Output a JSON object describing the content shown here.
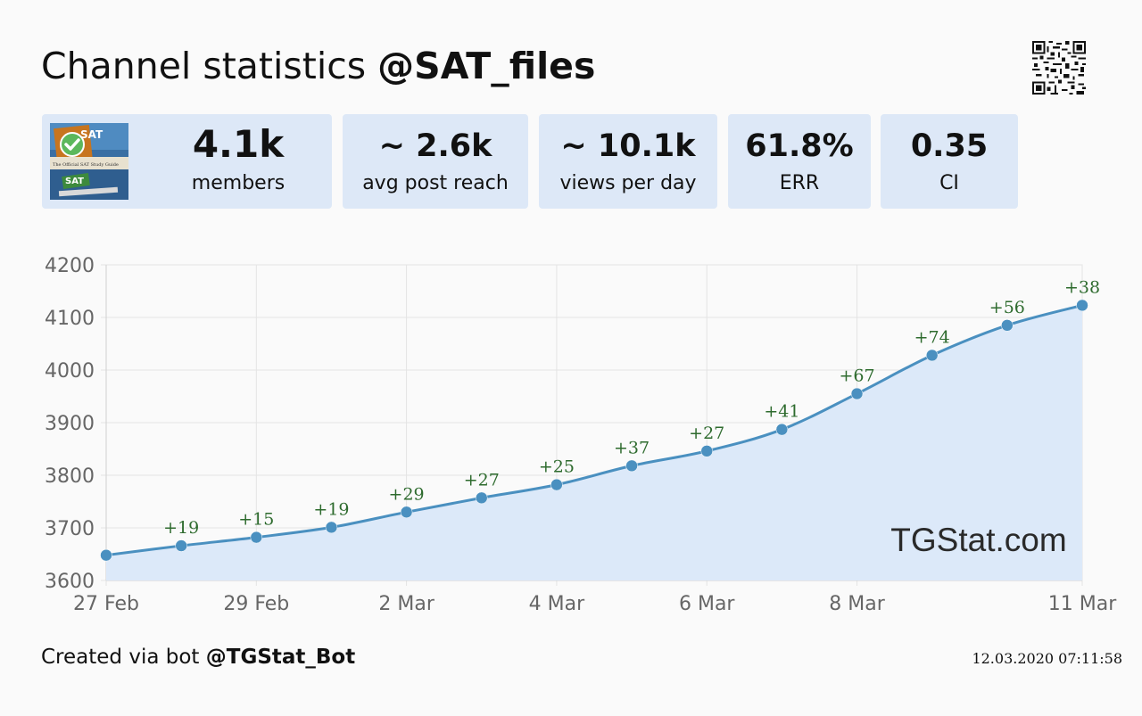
{
  "header": {
    "title_prefix": "Channel statistics",
    "channel": "@SAT_files"
  },
  "stats": {
    "members_value": "4.1k",
    "members_label": "members",
    "reach_value": "~ 2.6k",
    "reach_label": "avg post reach",
    "views_value": "~ 10.1k",
    "views_label": "views per day",
    "err_value": "61.8%",
    "err_label": "ERR",
    "ci_value": "0.35",
    "ci_label": "CI"
  },
  "avatar": {
    "text_top": "SAT",
    "text_guide": "The Official SAT Study Guide",
    "text_bottom": "SAT"
  },
  "footer": {
    "created_prefix": "Created via bot",
    "bot": "@TGStat_Bot",
    "timestamp": "12.03.2020 07:11:58"
  },
  "watermark": "TGStat.com",
  "colors": {
    "line": "#4a90c0",
    "fill": "#dce9f9",
    "delta_text": "#2e6b2e",
    "card_bg": "#dde8f7"
  },
  "chart_data": {
    "type": "area",
    "x": [
      "27 Feb",
      "28 Feb",
      "29 Feb",
      "1 Mar",
      "2 Mar",
      "3 Mar",
      "4 Mar",
      "5 Mar",
      "6 Mar",
      "7 Mar",
      "8 Mar",
      "9 Mar",
      "10 Mar",
      "11 Mar"
    ],
    "x_tick_labels": [
      "27 Feb",
      "29 Feb",
      "2 Mar",
      "4 Mar",
      "6 Mar",
      "8 Mar",
      "11 Mar"
    ],
    "x_tick_indices": [
      0,
      2,
      4,
      6,
      8,
      10,
      13
    ],
    "values": [
      3648,
      3666,
      3682,
      3701,
      3730,
      3757,
      3782,
      3818,
      3846,
      3887,
      3955,
      4028,
      4085,
      4123
    ],
    "annotations": [
      "",
      "+19",
      "+15",
      "+19",
      "+29",
      "+27",
      "+25",
      "+37",
      "+27",
      "+41",
      "+67",
      "+74",
      "+56",
      "+38"
    ],
    "ylim": [
      3600,
      4200
    ],
    "yticks": [
      3600,
      3700,
      3800,
      3900,
      4000,
      4100,
      4200
    ],
    "grid": true,
    "xlabel": "",
    "ylabel": ""
  }
}
